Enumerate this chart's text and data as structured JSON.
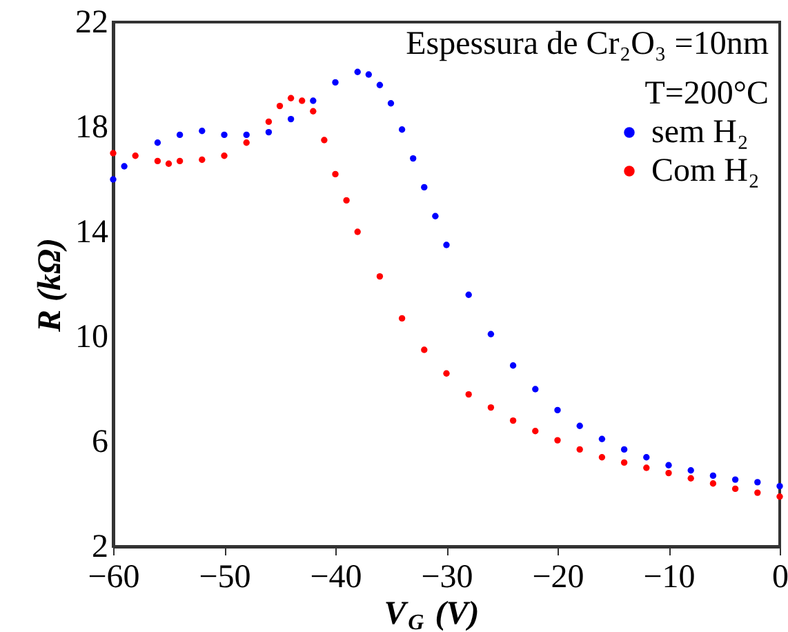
{
  "chart_data": {
    "type": "scatter",
    "xlabel": "V$_{G}$ (V)",
    "ylabel": "R (kΩ)",
    "annotations": [
      "Espessura de Cr₂O₃ =10nm",
      "T=200°C"
    ],
    "xlim": [
      -60,
      0
    ],
    "xticks": [
      -60,
      -50,
      -40,
      -30,
      -20,
      -10,
      0
    ],
    "ylim": [
      2,
      22
    ],
    "yticks": [
      2,
      6,
      10,
      14,
      18,
      22
    ],
    "grid": false,
    "legend": "top right",
    "marker": "circle",
    "series": [
      {
        "name": "sem H₂",
        "color": "#0000ff",
        "x": [
          -60,
          -59,
          -56,
          -54,
          -52,
          -50,
          -48,
          -46,
          -44,
          -42,
          -40,
          -38,
          -37,
          -36,
          -35,
          -34,
          -33,
          -32,
          -31,
          -30,
          -28,
          -26,
          -24,
          -22,
          -20,
          -18,
          -16,
          -14,
          -12,
          -10,
          -8,
          -6,
          -4,
          -2,
          0
        ],
        "values": [
          16.0,
          16.5,
          17.4,
          17.7,
          17.85,
          17.7,
          17.7,
          17.8,
          18.3,
          19.0,
          19.7,
          20.1,
          20.0,
          19.6,
          18.9,
          17.9,
          16.8,
          15.7,
          14.6,
          13.5,
          11.6,
          10.1,
          8.9,
          8.0,
          7.2,
          6.6,
          6.1,
          5.7,
          5.4,
          5.1,
          4.9,
          4.7,
          4.55,
          4.45,
          4.3
        ]
      },
      {
        "name": "Com H₂",
        "color": "#ff0000",
        "x": [
          -60,
          -58,
          -56,
          -55,
          -54,
          -52,
          -50,
          -48,
          -46,
          -45,
          -44,
          -43,
          -42,
          -41,
          -40,
          -39,
          -38,
          -36,
          -34,
          -32,
          -30,
          -28,
          -26,
          -24,
          -22,
          -20,
          -18,
          -16,
          -14,
          -12,
          -10,
          -8,
          -6,
          -4,
          -2,
          0
        ],
        "values": [
          17.0,
          16.9,
          16.7,
          16.6,
          16.7,
          16.75,
          16.9,
          17.4,
          18.2,
          18.8,
          19.1,
          19.0,
          18.6,
          17.5,
          16.2,
          15.2,
          14.0,
          12.3,
          10.7,
          9.5,
          8.6,
          7.8,
          7.3,
          6.8,
          6.4,
          6.05,
          5.7,
          5.4,
          5.2,
          5.0,
          4.8,
          4.6,
          4.4,
          4.2,
          4.05,
          3.9
        ]
      }
    ]
  }
}
